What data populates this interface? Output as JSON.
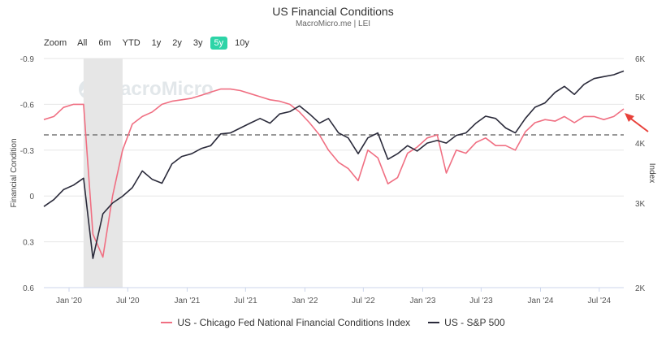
{
  "title": "US Financial Conditions",
  "subtitle": "MacroMicro.me | LEI",
  "watermark": "MacroMicro",
  "zoom": {
    "label": "Zoom",
    "options": [
      "All",
      "6m",
      "YTD",
      "1y",
      "2y",
      "3y",
      "5y",
      "10y"
    ],
    "active": "5y"
  },
  "colors": {
    "nfci": "#f06f82",
    "sp500": "#2a2a3a",
    "recession": "#e6e6e6",
    "reference": "#777777",
    "arrow": "#e8413a"
  },
  "chart_data": {
    "type": "line",
    "title": "US Financial Conditions",
    "x_ticks": [
      "Jan '20",
      "Jul '20",
      "Jan '21",
      "Jul '21",
      "Jan '22",
      "Jul '22",
      "Jan '23",
      "Jul '23",
      "Jan '24",
      "Jul '24"
    ],
    "left_axis": {
      "label": "Financial Condition",
      "reversed": true,
      "ticks": [
        "-0.9",
        "-0.6",
        "-0.3",
        "0",
        "0.3",
        "0.6"
      ],
      "ylim": [
        0.6,
        -0.9
      ]
    },
    "right_axis": {
      "label": "Index",
      "scale": "log",
      "ticks": [
        "6K",
        "5K",
        "4K",
        "3K",
        "2K"
      ],
      "ylim": [
        2000,
        6000
      ]
    },
    "reference_line": {
      "value": -0.4,
      "style": "dashed"
    },
    "shaded_period": {
      "start": "2020-02",
      "end": "2020-06"
    },
    "series": [
      {
        "name": "US - Chicago Fed National Financial Conditions Index",
        "axis": "left",
        "x": [
          "2019-10",
          "2019-11",
          "2019-12",
          "2020-01",
          "2020-02",
          "2020-03",
          "2020-04",
          "2020-05",
          "2020-06",
          "2020-07",
          "2020-08",
          "2020-09",
          "2020-10",
          "2020-11",
          "2020-12",
          "2021-01",
          "2021-02",
          "2021-03",
          "2021-04",
          "2021-05",
          "2021-06",
          "2021-07",
          "2021-08",
          "2021-09",
          "2021-10",
          "2021-11",
          "2021-12",
          "2022-01",
          "2022-02",
          "2022-03",
          "2022-04",
          "2022-05",
          "2022-06",
          "2022-07",
          "2022-08",
          "2022-09",
          "2022-10",
          "2022-11",
          "2022-12",
          "2023-01",
          "2023-02",
          "2023-03",
          "2023-04",
          "2023-05",
          "2023-06",
          "2023-07",
          "2023-08",
          "2023-09",
          "2023-10",
          "2023-11",
          "2023-12",
          "2024-01",
          "2024-02",
          "2024-03",
          "2024-04",
          "2024-05",
          "2024-06",
          "2024-07",
          "2024-08",
          "2024-09"
        ],
        "y": [
          -0.5,
          -0.52,
          -0.58,
          -0.6,
          -0.6,
          0.25,
          0.4,
          0.0,
          -0.3,
          -0.47,
          -0.52,
          -0.55,
          -0.6,
          -0.62,
          -0.63,
          -0.64,
          -0.66,
          -0.68,
          -0.7,
          -0.7,
          -0.69,
          -0.67,
          -0.65,
          -0.63,
          -0.62,
          -0.6,
          -0.55,
          -0.48,
          -0.4,
          -0.3,
          -0.22,
          -0.18,
          -0.1,
          -0.3,
          -0.25,
          -0.08,
          -0.12,
          -0.28,
          -0.32,
          -0.38,
          -0.4,
          -0.15,
          -0.3,
          -0.28,
          -0.35,
          -0.38,
          -0.33,
          -0.33,
          -0.3,
          -0.42,
          -0.48,
          -0.5,
          -0.49,
          -0.52,
          -0.48,
          -0.52,
          -0.52,
          -0.5,
          -0.52,
          -0.57
        ]
      },
      {
        "name": "US - S&P 500",
        "axis": "right",
        "x": [
          "2019-10",
          "2019-11",
          "2019-12",
          "2020-01",
          "2020-02",
          "2020-03",
          "2020-04",
          "2020-05",
          "2020-06",
          "2020-07",
          "2020-08",
          "2020-09",
          "2020-10",
          "2020-11",
          "2020-12",
          "2021-01",
          "2021-02",
          "2021-03",
          "2021-04",
          "2021-05",
          "2021-06",
          "2021-07",
          "2021-08",
          "2021-09",
          "2021-10",
          "2021-11",
          "2021-12",
          "2022-01",
          "2022-02",
          "2022-03",
          "2022-04",
          "2022-05",
          "2022-06",
          "2022-07",
          "2022-08",
          "2022-09",
          "2022-10",
          "2022-11",
          "2022-12",
          "2023-01",
          "2023-02",
          "2023-03",
          "2023-04",
          "2023-05",
          "2023-06",
          "2023-07",
          "2023-08",
          "2023-09",
          "2023-10",
          "2023-11",
          "2023-12",
          "2024-01",
          "2024-02",
          "2024-03",
          "2024-04",
          "2024-05",
          "2024-06",
          "2024-07",
          "2024-08",
          "2024-09"
        ],
        "y": [
          2950,
          3050,
          3200,
          3270,
          3380,
          2300,
          2850,
          3000,
          3100,
          3230,
          3500,
          3360,
          3300,
          3620,
          3750,
          3800,
          3900,
          3950,
          4180,
          4200,
          4300,
          4400,
          4500,
          4400,
          4600,
          4650,
          4780,
          4600,
          4400,
          4500,
          4200,
          4100,
          3800,
          4100,
          4200,
          3700,
          3800,
          3950,
          3850,
          4000,
          4050,
          4000,
          4150,
          4200,
          4400,
          4550,
          4500,
          4300,
          4200,
          4500,
          4750,
          4850,
          5100,
          5250,
          5050,
          5300,
          5450,
          5500,
          5550,
          5650
        ]
      }
    ]
  },
  "legend": {
    "nfci_label": "US - Chicago Fed National Financial Conditions Index",
    "sp500_label": "US - S&P 500"
  }
}
